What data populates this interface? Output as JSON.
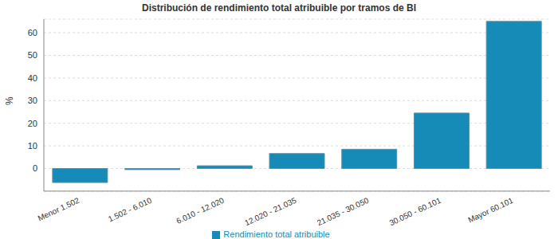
{
  "chart_data": {
    "type": "bar",
    "title": "Distribución de rendimiento total atribuible por tramos de BI",
    "y_label": "%",
    "categories": [
      "Menor 1.502",
      "1.502 - 6.010",
      "6.010 - 12.020",
      "12.020 - 21.035",
      "21.035 - 30.050",
      "30.050 - 60.101",
      "Mayor 60.101"
    ],
    "series": [
      {
        "name": "Rendimiento total atribuible",
        "color": "#168bb8",
        "values": [
          -6.2,
          -0.5,
          1.2,
          6.6,
          8.5,
          24.5,
          65
        ]
      }
    ],
    "ylim": [
      -10,
      66
    ],
    "yticks": [
      0,
      10,
      20,
      30,
      40,
      50,
      60
    ],
    "grid": true,
    "legend": "bottom"
  }
}
